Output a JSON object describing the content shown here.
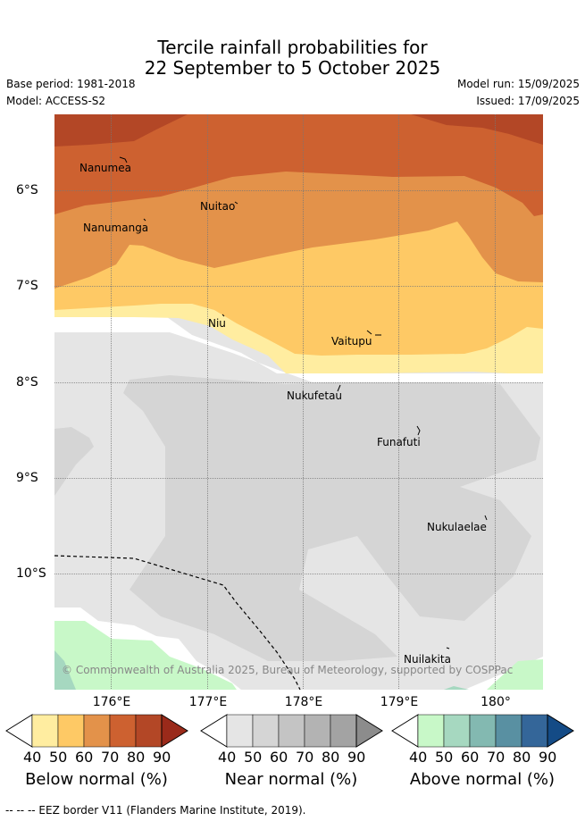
{
  "title_line1": "Tercile rainfall probabilities for",
  "title_line2": "22 September to 5 October 2025",
  "base_period": "Base period: 1981-2018",
  "model": "Model: ACCESS-S2",
  "model_run": "Model run: 15/09/2025",
  "issued": "Issued: 17/09/2025",
  "credit": "© Commonwealth of Australia 2025, Bureau of Meteorology, supported by COSPPac",
  "footer": "--  --  -- EEZ border V11 (Flanders Marine Institute, 2019).",
  "map": {
    "lon_labels": [
      "176°E",
      "177°E",
      "178°E",
      "179°E",
      "180°"
    ],
    "lat_labels": [
      "6°S",
      "7°S",
      "8°S",
      "9°S",
      "10°S"
    ],
    "places": [
      "Nanumea",
      "Nuitao",
      "Nanumanga",
      "Niu",
      "Vaitupu",
      "Nukufetau",
      "Funafuti",
      "Nukulaelae",
      "Nuilakita"
    ]
  },
  "legend": {
    "ticks": [
      "40",
      "50",
      "60",
      "70",
      "80",
      "90"
    ],
    "below": {
      "title": "Below normal (%)",
      "colors": [
        "#ffeda0",
        "#fec965",
        "#e3924a",
        "#cd6130",
        "#b34726",
        "#9a2a1a"
      ]
    },
    "near": {
      "title": "Near normal (%)",
      "colors": [
        "#e5e5e5",
        "#d5d5d5",
        "#c4c4c4",
        "#b3b3b3",
        "#a3a3a3",
        "#8c8c8c"
      ]
    },
    "above": {
      "title": "Above normal (%)",
      "colors": [
        "#c8f8c8",
        "#a6d8c0",
        "#83b9b1",
        "#5990a2",
        "#346699",
        "#144b86"
      ]
    }
  }
}
